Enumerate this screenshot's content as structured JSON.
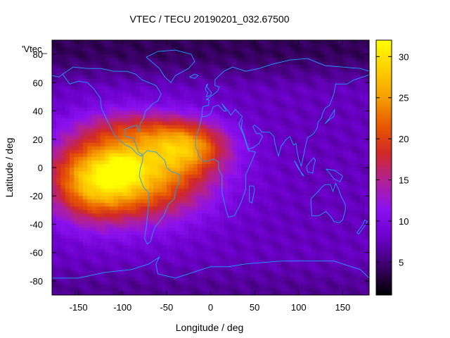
{
  "chart_data": {
    "type": "heatmap",
    "title": "VTEC / TECU 20190201_032.67500",
    "xlabel": "Longitude / deg",
    "ylabel": "Latitude / deg",
    "series_label": "'Vtec_",
    "xlim": [
      -180,
      180
    ],
    "ylim": [
      -90,
      90
    ],
    "x_ticks": [
      -150,
      -100,
      -50,
      0,
      50,
      100,
      150
    ],
    "y_ticks": [
      -80,
      -60,
      -40,
      -20,
      0,
      20,
      40,
      60,
      80
    ],
    "colorbar": {
      "range": [
        1,
        32
      ],
      "ticks": [
        5,
        10,
        15,
        20,
        25,
        30
      ],
      "palette": [
        "#000000",
        "#3a0066",
        "#6a00c8",
        "#8a10f0",
        "#b0209a",
        "#d02828",
        "#e85a00",
        "#f5a000",
        "#ffd000",
        "#ffff00"
      ]
    },
    "grid": false,
    "legend": "top-left",
    "coastline_color": "#1ea0ff",
    "field_model": {
      "background_vtec": 7.5,
      "polar_north_vtec": 4,
      "peaks": [
        {
          "lon": -90,
          "lat": -5,
          "amp": 20,
          "sigma_lon": 60,
          "sigma_lat": 22
        },
        {
          "lon": -135,
          "lat": -12,
          "amp": 8,
          "sigma_lon": 30,
          "sigma_lat": 18
        },
        {
          "lon": -25,
          "lat": 15,
          "amp": 12,
          "sigma_lon": 32,
          "sigma_lat": 12
        },
        {
          "lon": -85,
          "lat": 28,
          "amp": 5,
          "sigma_lon": 45,
          "sigma_lat": 10
        },
        {
          "lon": -100,
          "lat": 0,
          "amp": 5,
          "sigma_lon": 14,
          "sigma_lat": 8
        }
      ]
    }
  }
}
